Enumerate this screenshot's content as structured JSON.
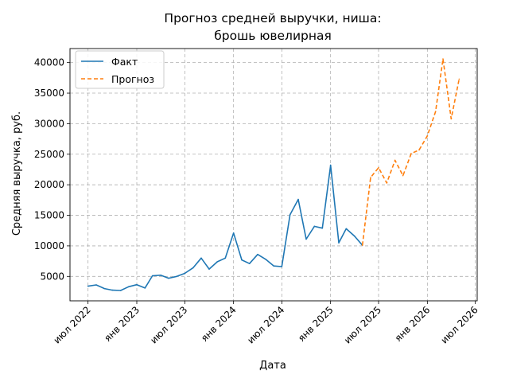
{
  "chart_data": {
    "type": "line",
    "title_lines": [
      "Прогноз средней выручки, ниша:",
      "брошь ювелирная"
    ],
    "xlabel": "Дата",
    "ylabel": "Средняя выручка, руб.",
    "x_ticks": [
      {
        "date": "2022-07-01",
        "label": "июл 2022"
      },
      {
        "date": "2023-01-01",
        "label": "янв 2023"
      },
      {
        "date": "2023-07-01",
        "label": "июл 2023"
      },
      {
        "date": "2024-01-01",
        "label": "янв 2024"
      },
      {
        "date": "2024-07-01",
        "label": "июл 2024"
      },
      {
        "date": "2025-01-01",
        "label": "янв 2025"
      },
      {
        "date": "2025-07-01",
        "label": "июл 2025"
      },
      {
        "date": "2026-01-01",
        "label": "янв 2026"
      },
      {
        "date": "2026-07-01",
        "label": "июл 2026"
      }
    ],
    "y_ticks": [
      5000,
      10000,
      15000,
      20000,
      25000,
      30000,
      35000,
      40000
    ],
    "xlim": [
      "2022-04-24",
      "2026-07-08"
    ],
    "ylim": [
      1000,
      42300
    ],
    "grid": true,
    "legend_position": "top-left",
    "series": [
      {
        "name": "Факт",
        "color": "#1f77b4",
        "dash": "solid",
        "points": [
          [
            "2022-07-01",
            3400
          ],
          [
            "2022-08-01",
            3600
          ],
          [
            "2022-09-01",
            3000
          ],
          [
            "2022-10-01",
            2750
          ],
          [
            "2022-11-01",
            2700
          ],
          [
            "2022-12-01",
            3300
          ],
          [
            "2023-01-01",
            3650
          ],
          [
            "2023-02-01",
            3100
          ],
          [
            "2023-03-01",
            5100
          ],
          [
            "2023-04-01",
            5200
          ],
          [
            "2023-05-01",
            4700
          ],
          [
            "2023-06-01",
            5000
          ],
          [
            "2023-07-01",
            5500
          ],
          [
            "2023-08-01",
            6400
          ],
          [
            "2023-09-01",
            8000
          ],
          [
            "2023-10-01",
            6200
          ],
          [
            "2023-11-01",
            7400
          ],
          [
            "2023-12-01",
            8000
          ],
          [
            "2024-01-01",
            12100
          ],
          [
            "2024-02-01",
            7700
          ],
          [
            "2024-03-01",
            7100
          ],
          [
            "2024-04-01",
            8600
          ],
          [
            "2024-05-01",
            7800
          ],
          [
            "2024-06-01",
            6700
          ],
          [
            "2024-07-01",
            6600
          ],
          [
            "2024-08-01",
            15100
          ],
          [
            "2024-09-01",
            17600
          ],
          [
            "2024-10-01",
            11100
          ],
          [
            "2024-11-01",
            13200
          ],
          [
            "2024-12-01",
            12900
          ],
          [
            "2025-01-01",
            23200
          ],
          [
            "2025-02-01",
            10500
          ],
          [
            "2025-03-01",
            12800
          ],
          [
            "2025-04-01",
            11600
          ],
          [
            "2025-05-01",
            10100
          ]
        ]
      },
      {
        "name": "Прогноз",
        "color": "#ff7f0e",
        "dash": "dashed",
        "points": [
          [
            "2025-05-01",
            10100
          ],
          [
            "2025-06-01",
            21200
          ],
          [
            "2025-07-01",
            22800
          ],
          [
            "2025-08-01",
            20300
          ],
          [
            "2025-09-01",
            24000
          ],
          [
            "2025-10-01",
            21500
          ],
          [
            "2025-11-01",
            25100
          ],
          [
            "2025-12-01",
            25700
          ],
          [
            "2026-01-01",
            28000
          ],
          [
            "2026-02-01",
            32000
          ],
          [
            "2026-03-01",
            40600
          ],
          [
            "2026-04-01",
            30800
          ],
          [
            "2026-05-01",
            37300
          ]
        ]
      }
    ]
  }
}
